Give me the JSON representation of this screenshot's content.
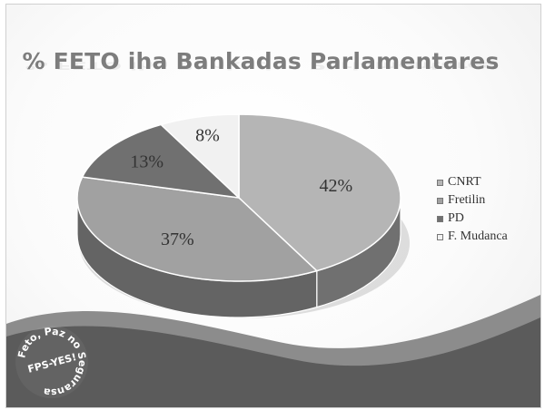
{
  "chart_data": {
    "type": "pie",
    "title": "% FETO iha Bankadas Parlamentares",
    "categories": [
      "CNRT",
      "Fretilin",
      "PD",
      "F. Mudanca"
    ],
    "values": [
      42,
      37,
      13,
      8
    ],
    "value_labels": [
      "42%",
      "37%",
      "13%",
      "8%"
    ],
    "legend_position": "right",
    "three_d": true
  },
  "colors": {
    "CNRT": "#b5b5b5",
    "Fretilin": "#a1a1a1",
    "PD": "#707070",
    "F. Mudanca": "#f1f1f1"
  },
  "logo": {
    "text_arc": "Feto, Paz no Seguransa",
    "text_center": "FPS-YES!"
  }
}
